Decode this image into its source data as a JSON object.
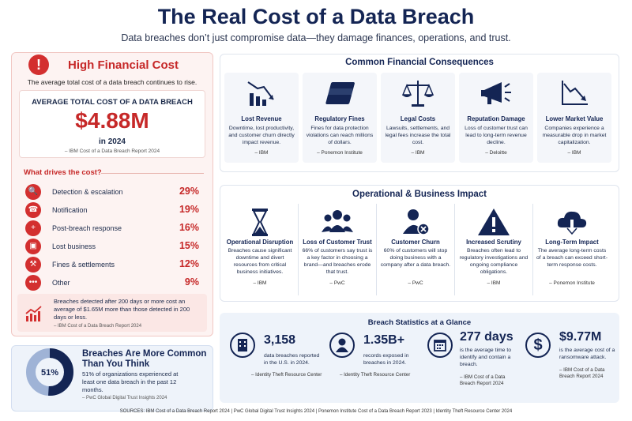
{
  "header": {
    "title": "The Real Cost of a Data Breach",
    "subtitle": "Data breaches don’t just compromise data—they damage finances, operations, and trust."
  },
  "left": {
    "title": "High Financial Cost",
    "subtitle": "The average total cost of a data breach continues to rise.",
    "avg_label": "AVERAGE TOTAL COST OF A DATA BREACH",
    "avg_value": "$4.88M",
    "avg_year": "in 2024",
    "avg_source": "– IBM Cost of a Data Breach Report 2024",
    "drives_title": "What drives the cost?",
    "drivers": [
      {
        "label": "Detection & escalation",
        "pct": "29%",
        "icon": "search-icon"
      },
      {
        "label": "Notification",
        "pct": "19%",
        "icon": "headset-icon"
      },
      {
        "label": "Post-breach response",
        "pct": "16%",
        "icon": "first-aid-icon"
      },
      {
        "label": "Lost business",
        "pct": "15%",
        "icon": "briefcase-icon"
      },
      {
        "label": "Fines & settlements",
        "pct": "12%",
        "icon": "gavel-icon"
      },
      {
        "label": "Other",
        "pct": "9%",
        "icon": "more-icon"
      }
    ],
    "note": "Breaches detected after 200 days or more cost an average of $1.65M more than those detected in 200 days or less.",
    "note_source": "– IBM Cost of a Data Breach Report 2024"
  },
  "common": {
    "percent": "51%",
    "percent_value": 0.51,
    "title": "Breaches Are More Common Than You Think",
    "text": "51% of organizations experienced at least one data breach in the past 12 months.",
    "source": "– PwC Global Digital Trust Insights 2024"
  },
  "financial": {
    "title": "Common Financial Consequences",
    "cards": [
      {
        "title": "Lost Revenue",
        "text": "Downtime, lost productivity, and customer churn directly impact revenue.",
        "source": "– IBM"
      },
      {
        "title": "Regulatory Fines",
        "text": "Fines for data protection violations can reach millions of dollars.",
        "source": "– Ponemon Institute"
      },
      {
        "title": "Legal Costs",
        "text": "Lawsuits, settlements, and legal fees increase the total cost.",
        "source": "– IBM"
      },
      {
        "title": "Reputation Damage",
        "text": "Loss of customer trust can lead to long-term revenue decline.",
        "source": "– Deloitte"
      },
      {
        "title": "Lower Market Value",
        "text": "Companies experience a measurable drop in market capitalization.",
        "source": "– IBM"
      }
    ]
  },
  "operational": {
    "title": "Operational & Business Impact",
    "cards": [
      {
        "title": "Operational Disruption",
        "text": "Breaches cause significant downtime and divert resources from critical business initiatives.",
        "source": "– IBM"
      },
      {
        "title": "Loss of Customer Trust",
        "text": "66% of customers say trust is a key factor in choosing a brand—and breaches erode that trust.",
        "source": "– PwC"
      },
      {
        "title": "Customer Churn",
        "text": "60% of customers will stop doing business with a company after a data breach.",
        "source": "– PwC"
      },
      {
        "title": "Increased Scrutiny",
        "text": "Breaches often lead to regulatory investigations and ongoing compliance obligations.",
        "source": "– IBM"
      },
      {
        "title": "Long-Term Impact",
        "text": "The average long-term costs of a breach can exceed short-term response costs.",
        "source": "– Ponemon Institute"
      }
    ]
  },
  "stats": {
    "title": "Breach Statistics at a Glance",
    "items": [
      {
        "value": "3,158",
        "text": "data breaches reported in the U.S. in 2024.",
        "source": "– Identity Theft Resource Center"
      },
      {
        "value": "1.35B+",
        "text": "records exposed in breaches in 2024.",
        "source": "– Identity Theft Resource Center"
      },
      {
        "value": "277 days",
        "text": "is the average time to identify and contain a breach.",
        "source": "– IBM Cost of a Data Breach Report 2024"
      },
      {
        "value": "$9.77M",
        "text": "is the average cost of a ransomware attack.",
        "source": "– IBM Cost of a Data Breach Report 2024"
      }
    ]
  },
  "sources": "SOURCES:   IBM Cost of a Data Breach Report 2024  |  PwC Global Digital Trust Insights 2024  |  Ponemon Institute Cost of a Data Breach Report 2023  |  Identity Theft Resource Center 2024"
}
